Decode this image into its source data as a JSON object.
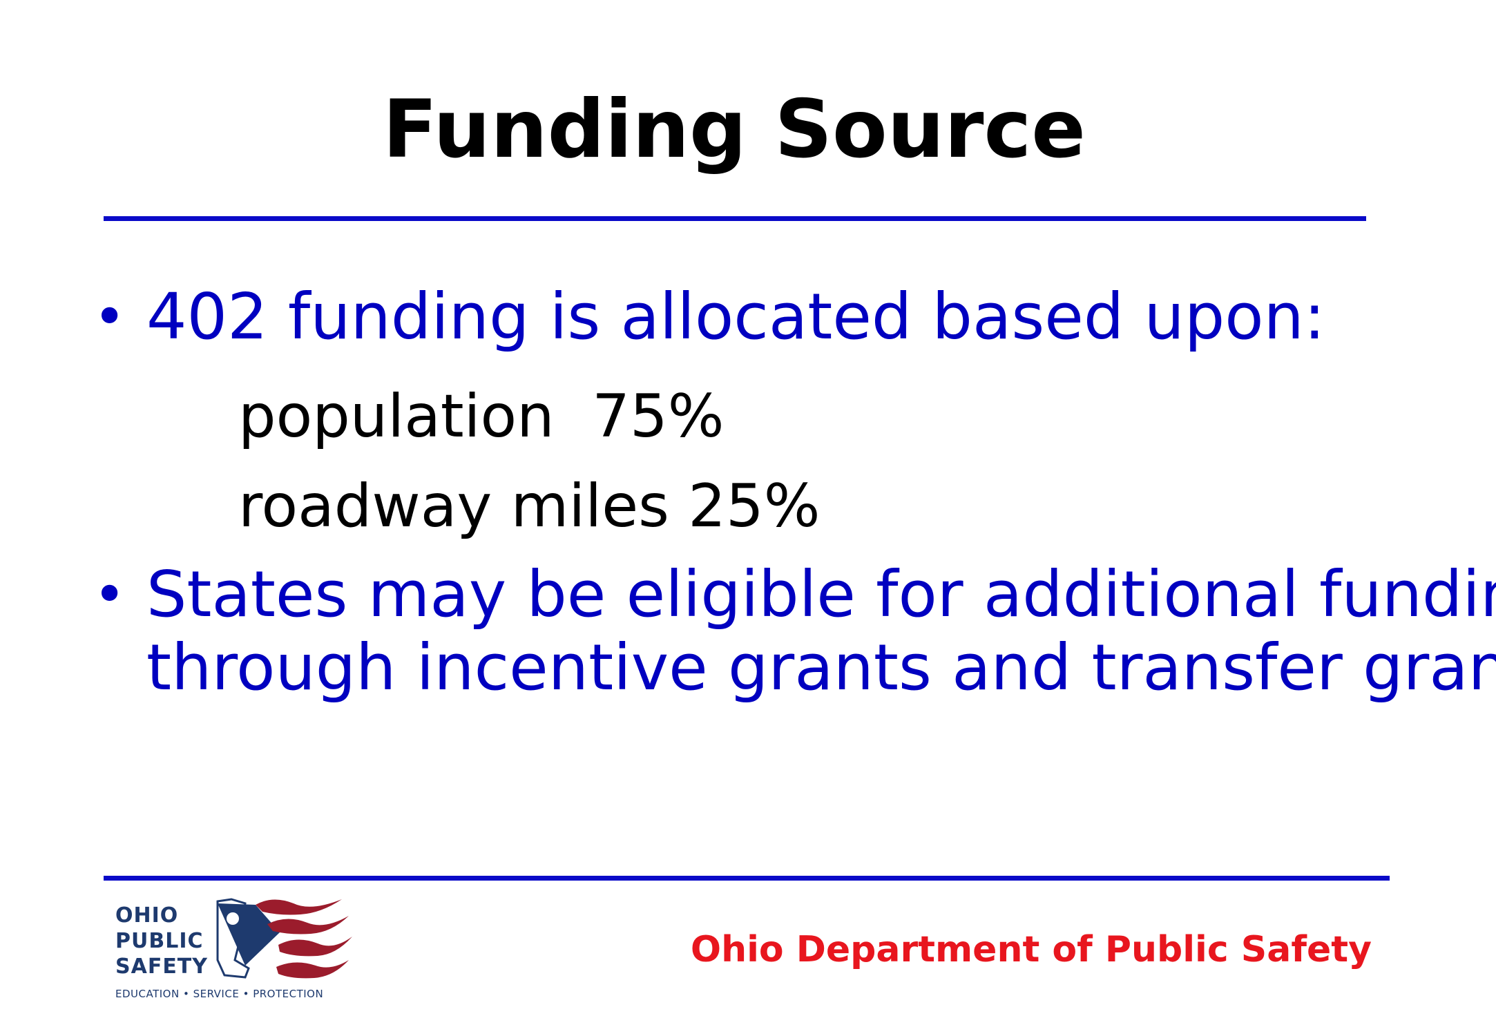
{
  "slide": {
    "title": "Funding Source",
    "bullets": [
      {
        "text": "402 funding is allocated based upon:"
      },
      {
        "text": "States may be eligible for additional funding\nthrough incentive grants and transfer grants"
      }
    ],
    "sub_items": [
      {
        "text": "population  75%"
      },
      {
        "text": "roadway miles 25%"
      }
    ]
  },
  "logo": {
    "line1": "OHIO",
    "line2": "PUBLIC",
    "line3": "SAFETY",
    "tagline": "EDUCATION • SERVICE • PROTECTION"
  },
  "footer": {
    "organization": "Ohio Department of Public Safety"
  },
  "colors": {
    "bullet_text": "#0000c0",
    "rule": "#0a0ac8",
    "footer_text": "#e8161e",
    "logo_navy": "#1e3a6e",
    "logo_red": "#9b1c2c"
  }
}
